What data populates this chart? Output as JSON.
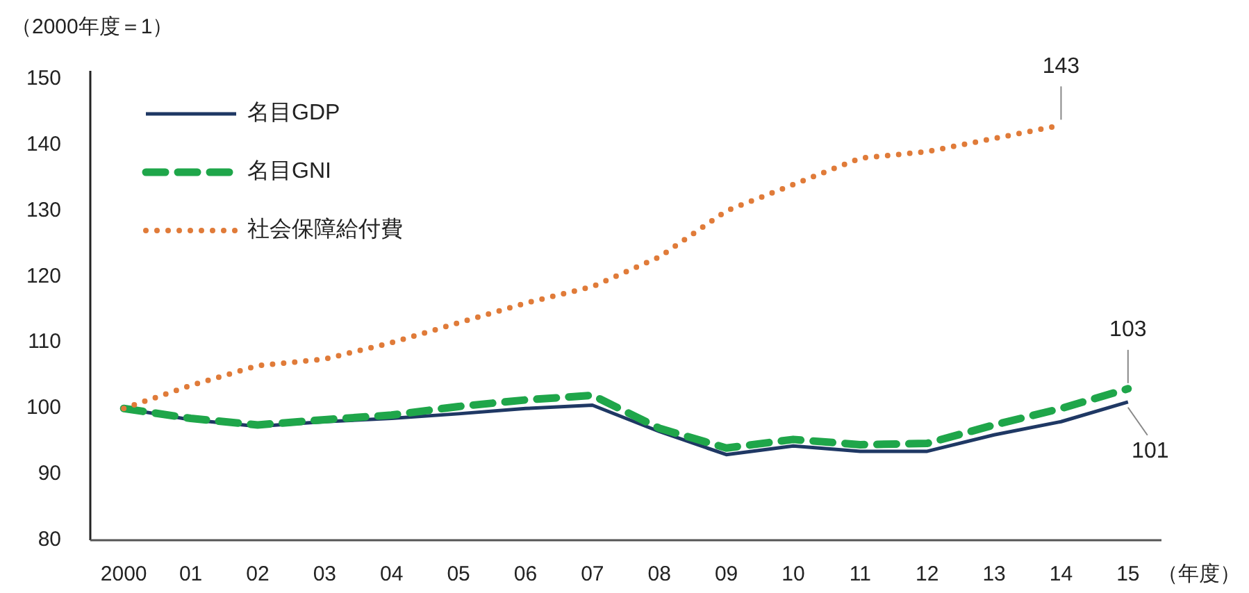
{
  "chart_data": {
    "type": "line",
    "ylabel": "（2000年度＝1）",
    "xlabel": "（年度）",
    "categories": [
      "2000",
      "01",
      "02",
      "03",
      "04",
      "05",
      "06",
      "07",
      "08",
      "09",
      "10",
      "11",
      "12",
      "13",
      "14",
      "15"
    ],
    "ylim": [
      80,
      150
    ],
    "yticks": [
      80,
      90,
      100,
      110,
      120,
      130,
      140,
      150
    ],
    "legend": "top left",
    "series": [
      {
        "name": "名目GDP",
        "color": "#1f3864",
        "line_style": "solid",
        "values": [
          100,
          98.3,
          97.3,
          98,
          98.5,
          99.2,
          100,
          100.5,
          96.5,
          93,
          94.3,
          93.5,
          93.5,
          96,
          98,
          101
        ],
        "value_labels": [
          null,
          null,
          null,
          null,
          null,
          null,
          null,
          null,
          null,
          null,
          null,
          null,
          null,
          null,
          null,
          "101"
        ]
      },
      {
        "name": "名目GNI",
        "color": "#1fa64a",
        "line_style": "dashed",
        "values": [
          100,
          98.5,
          97.5,
          98.3,
          99,
          100.3,
          101.3,
          102,
          97,
          94,
          95.3,
          94.5,
          94.7,
          97.5,
          100,
          103
        ],
        "value_labels": [
          null,
          null,
          null,
          null,
          null,
          null,
          null,
          null,
          null,
          null,
          null,
          null,
          null,
          null,
          null,
          "103"
        ]
      },
      {
        "name": "社会保障給付費",
        "color": "#e07b39",
        "line_style": "dotted",
        "values": [
          100,
          103.5,
          106.5,
          107.5,
          110,
          113,
          116,
          118.5,
          123,
          130,
          134,
          138,
          139,
          141,
          143,
          null
        ],
        "value_labels": [
          null,
          null,
          null,
          null,
          null,
          null,
          null,
          null,
          null,
          null,
          null,
          null,
          null,
          null,
          "143",
          null
        ]
      }
    ]
  }
}
